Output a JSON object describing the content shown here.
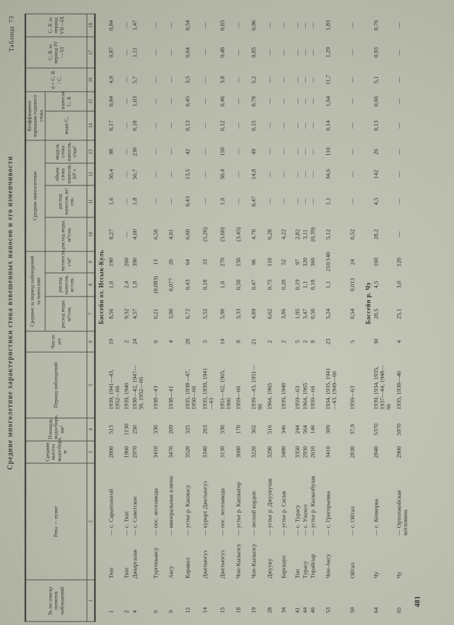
{
  "title": "Средние многолетние характеристики стока взвешенных наносов и его изменчивости",
  "table_label": "Таблица",
  "table_number": "73",
  "page_number": "481",
  "header": {
    "c1": "№ по списку пунктов наблюдений",
    "c2": "Река — пункт",
    "c3": "Средняя высота водосбора, м",
    "c4": "Площадь водосбора, км²",
    "c5": "Период наблюдений",
    "c6": "Число лет",
    "group_period": "Средние за период наблюдений за наносами",
    "c7": "расход воды, м³/сек.",
    "c8": "расход наносов, кг/сек.",
    "c9": "мутность, г/м³",
    "group_longterm": "Средние многолетние",
    "c10": "расход воды, м³/сек.",
    "c11": "расход наносов, кг/сек.",
    "c12": "объем стока наносов, 10³ т",
    "c13": "модуль стока наносов, т/км²",
    "group_cv": "Коэффициент вариации годового стока",
    "c14": "воды Cᵥ",
    "c15": "наносов Cᵥ R",
    "c16": "d = Cᵥ R / Cᵥ",
    "c17": "Cᵥ R за период IV—VI",
    "c18": "Cᵥ R за период VII—IX",
    "numbers": [
      "1",
      "2",
      "3",
      "4",
      "5",
      "6",
      "7",
      "8",
      "9",
      "10",
      "11",
      "12",
      "13",
      "14",
      "15",
      "16",
      "17",
      "18"
    ]
  },
  "rows": [
    {
      "basin": "Бассейн оз. Иссык-Куль"
    },
    {
      "no": "1",
      "river": "Тюп",
      "point": "— с. Сарытологой",
      "cells": [
        "2800",
        "513",
        "1939, 1941—43, 1952—66",
        "19",
        "8,56",
        "1,6",
        "190",
        "8,27",
        "1,6",
        "50,4",
        "98",
        "0,17",
        "0,84",
        "4,9",
        "0,87",
        "0,84"
      ]
    },
    {
      "no": "2",
      "river": "Тюп",
      "point": "— с. Тюп",
      "cells": [
        "1960",
        "1130",
        "1939, 1940",
        "2",
        "9,32",
        "2,4",
        "260",
        "—",
        "—",
        "—",
        "—",
        "—",
        "—",
        "—",
        "—",
        "—"
      ]
    },
    {
      "no": "4",
      "river": "Джыргалан",
      "point": "— с. Советское",
      "cells": [
        "2970",
        "250",
        "1938—42, 1947—50, 1952—66",
        "24",
        "4,57",
        "1,8",
        "390",
        "4,60",
        "1,8",
        "56,7",
        "230",
        "0,18",
        "1,03",
        "5,7",
        "1,11",
        "1,47"
      ]
    },
    {
      "no": "6",
      "river": "Тургеньаксу",
      "point": "— пос. лесозавода",
      "cells": [
        "3410",
        "330",
        "1938—43",
        "6",
        "6,21",
        "(0,083)",
        "13",
        "6,56",
        "—",
        "—",
        "—",
        "—",
        "—",
        "—",
        "—",
        "—"
      ]
    },
    {
      "no": "9",
      "river": "Аксу",
      "point": "— минеральные ключи",
      "cells": [
        "3470",
        "209",
        "1938—41",
        "4",
        "3,90",
        "0,077",
        "20",
        "4,01",
        "—",
        "—",
        "—",
        "—",
        "—",
        "—",
        "—",
        "—"
      ]
    },
    {
      "no": "12",
      "river": "Каракол",
      "point": "— устье р. Кашкасу",
      "cells": [
        "3520",
        "325",
        "1935, 1938—47, 1950—66",
        "28",
        "6,72",
        "0,43",
        "64",
        "6,60",
        "0,43",
        "13,5",
        "42",
        "0,13",
        "0,45",
        "3,5",
        "0,64",
        "0,54"
      ]
    },
    {
      "no": "14",
      "river": "Джетыогуз",
      "point": "— курорт Джетыогуз",
      "cells": [
        "3340",
        "263",
        "1935, 1939, 1941—43",
        "5",
        "5,52",
        "0,18",
        "33",
        "(5,26)",
        "—",
        "—",
        "—",
        "—",
        "—",
        "—",
        "—",
        "—"
      ]
    },
    {
      "no": "15",
      "river": "Джетыогуз",
      "point": "— пос. лесозавода",
      "cells": [
        "3130",
        "330",
        "1951—62, 1965, 1966",
        "14",
        "5,90",
        "1,6",
        "270",
        "(5,60)",
        "1,6",
        "50,4",
        "150",
        "0,12",
        "0,46",
        "3,8",
        "0,48",
        "0,65"
      ]
    },
    {
      "no": "18",
      "river": "Чон-Кызылсу",
      "point": "— устье р. Кашкатор",
      "cells": [
        "3680",
        "170",
        "1959—66",
        "8",
        "3,33",
        "0,50",
        "150",
        "(3,45)",
        "—",
        "—",
        "—",
        "—",
        "—",
        "—",
        "—",
        "—"
      ]
    },
    {
      "no": "19",
      "river": "Чон-Кызылсу",
      "point": "— лесной кордон",
      "cells": [
        "3220",
        "302",
        "1939—43, 1951—66",
        "21",
        "4,89",
        "0,47",
        "96",
        "4,70",
        "0,47",
        "14,8",
        "49",
        "0,15",
        "0,78",
        "5,2",
        "0,85",
        "0,96"
      ]
    },
    {
      "no": "28",
      "river": "Джууку",
      "point": "— устье р. Джуукучак",
      "cells": [
        "3290",
        "516",
        "1964, 1965",
        "2",
        "6,62",
        "0,75",
        "110",
        "6,28",
        "—",
        "—",
        "—",
        "—",
        "—",
        "—",
        "—",
        "—"
      ]
    },
    {
      "no": "34",
      "river": "Барскаун",
      "point": "— устье р. Сасык",
      "cells": [
        "3480",
        "346",
        "1939, 1940",
        "2",
        "3,86",
        "0,20",
        "52",
        "4,22",
        "—",
        "—",
        "—",
        "—",
        "—",
        "—",
        "—",
        "—"
      ]
    },
    {
      "no": "41",
      "river": "Тон",
      "point": "— с. Турасу",
      "cells": [
        "3350",
        "244",
        "1959—63",
        "5",
        "1,95",
        "0,19",
        "97",
        "2,82",
        "—",
        "—",
        "—",
        "—",
        "—",
        "—",
        "—",
        "—"
      ]
    },
    {
      "no": "44",
      "river": "Турасу",
      "point": "— с. Улахол",
      "cells": [
        "2930",
        "564",
        "1964, 1965",
        "2",
        "3,47",
        "1,1",
        "320",
        "3,11",
        "—",
        "—",
        "—",
        "—",
        "—",
        "—",
        "—",
        "—"
      ]
    },
    {
      "no": "46",
      "river": "Торайгыр",
      "point": "— устье р. Кызылбулак",
      "cells": [
        "2610",
        "146",
        "1959—66",
        "8",
        "0,50",
        "0,18",
        "360",
        "(0,39)",
        "—",
        "—",
        "—",
        "—",
        "—",
        "—",
        "—",
        "—"
      ]
    },
    {
      "no": "53",
      "river": "Чон-Аксу",
      "point": "— с. Григорьевка",
      "cells": [
        "3410",
        "309",
        "1934, 1935, 1941—43, 1949—66",
        "23",
        "5,24",
        "1,1",
        "210/140",
        "5,12",
        "1,1",
        "34,6",
        "110",
        "0,14",
        "1,64",
        "11,7",
        "1,29",
        "1,83"
      ]
    },
    {
      "no": "59",
      "river": "Ойтал",
      "point": "— с. Ойтал",
      "cells": [
        "2830",
        "37,9",
        "1959—63",
        "5",
        "0,54",
        "0,013",
        "24",
        "0,52",
        "—",
        "—",
        "—",
        "—",
        "—",
        "—",
        "—",
        "—"
      ]
    },
    {
      "basin": "Бассейн р. Чу"
    },
    {
      "no": "64",
      "river": "Чу",
      "point": "— с. Кочкорка",
      "cells": [
        "2840",
        "5370",
        "1939, 1934, 1935, 1937—44, 1948—66",
        "30",
        "28,5",
        "4,5",
        "160",
        "28,2",
        "4,5",
        "142",
        "26",
        "0,13",
        "0,66",
        "5,1",
        "0,93",
        "0,76"
      ]
    },
    {
      "no": "65",
      "river": "Чу",
      "point": "— Ортотокойская котловина",
      "cells": [
        "2900",
        "5970",
        "1935, 1938—40",
        "4",
        "25,1",
        "3,0",
        "120",
        "—",
        "—",
        "—",
        "—",
        "—",
        "—",
        "—",
        "—",
        "—"
      ]
    }
  ]
}
